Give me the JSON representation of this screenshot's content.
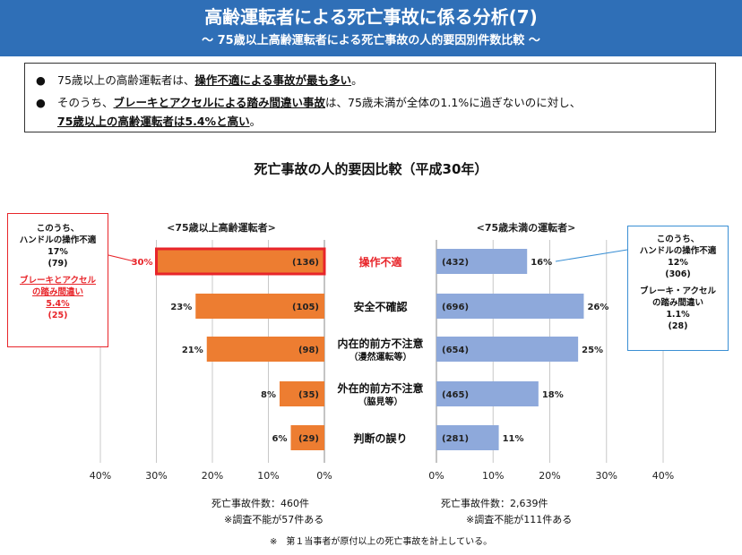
{
  "header": {
    "title": "高齢運転者による死亡事故に係る分析(7)",
    "subtitle": "～ 75歳以上高齢運転者による死亡事故の人的要因別件数比較 ～"
  },
  "notes": [
    {
      "pre": "75歳以上の高齢運転者は、",
      "em": "操作不適による事故が最も多い",
      "post": "。"
    },
    {
      "pre": "そのうち、",
      "em": "ブレーキとアクセルによる踏み間違い事故",
      "post": "は、75歳未満が全体の1.1%に過ぎないのに対し、"
    },
    {
      "pre": "",
      "em": "75歳以上の高齢運転者は5.4%と高い",
      "post": "。"
    }
  ],
  "colors": {
    "header_bg": "#2f6fb7",
    "elderly_bar": "#ed7d31",
    "younger_bar": "#8ea9db",
    "highlight": "#e8252a",
    "callout_border_right": "#3a8fd4"
  },
  "chart_data": {
    "type": "bar",
    "title": "死亡事故の人的要因比較（平成30年）",
    "categories": [
      "操作不適",
      "安全不確認",
      "内在的前方不注意",
      "外在的前方不注意",
      "判断の誤り"
    ],
    "category_sublabels": [
      "",
      "",
      "（漫然運転等）",
      "（脇見等）",
      ""
    ],
    "highlight_category": "操作不適",
    "x_ticks": [
      "40%",
      "30%",
      "20%",
      "10%",
      "0%"
    ],
    "x_ticks_right": [
      "0%",
      "10%",
      "20%",
      "30%",
      "40%"
    ],
    "xlim": [
      0,
      40
    ],
    "series": [
      {
        "name": "<75歳以上高齢運転者>",
        "values": [
          30,
          23,
          21,
          8,
          6
        ],
        "value_labels": [
          "30%",
          "23%",
          "21%",
          "8%",
          "6%"
        ],
        "counts": [
          "(136)",
          "(105)",
          "(98)",
          "(35)",
          "(29)"
        ],
        "total": "死亡事故件数：460件",
        "note": "※調査不能が57件ある"
      },
      {
        "name": "<75歳未満の運転者>",
        "values": [
          16,
          26,
          25,
          18,
          11
        ],
        "value_labels": [
          "16%",
          "26%",
          "25%",
          "18%",
          "11%"
        ],
        "counts": [
          "(432)",
          "(696)",
          "(654)",
          "(465)",
          "(281)"
        ],
        "total": "死亡事故件数：2,639件",
        "note": "※調査不能が111件ある"
      }
    ],
    "footnote": "※　第１当事者が原付以上の死亡事故を計上している。",
    "grid": true
  },
  "callouts": {
    "left": {
      "l1": "このうち、",
      "l2": "ハンドルの操作不適",
      "l3": "17%",
      "l4": "(79)",
      "l5": "ブレーキとアクセル",
      "l6": "の踏み間違い",
      "l7": "5.4%",
      "l8": "(25)"
    },
    "right": {
      "l1": "このうち、",
      "l2": "ハンドルの操作不適",
      "l3": "12%",
      "l4": "(306)",
      "l5": "ブレーキ・アクセル",
      "l6": "の踏み間違い",
      "l7": "1.1%",
      "l8": "(28)"
    }
  }
}
